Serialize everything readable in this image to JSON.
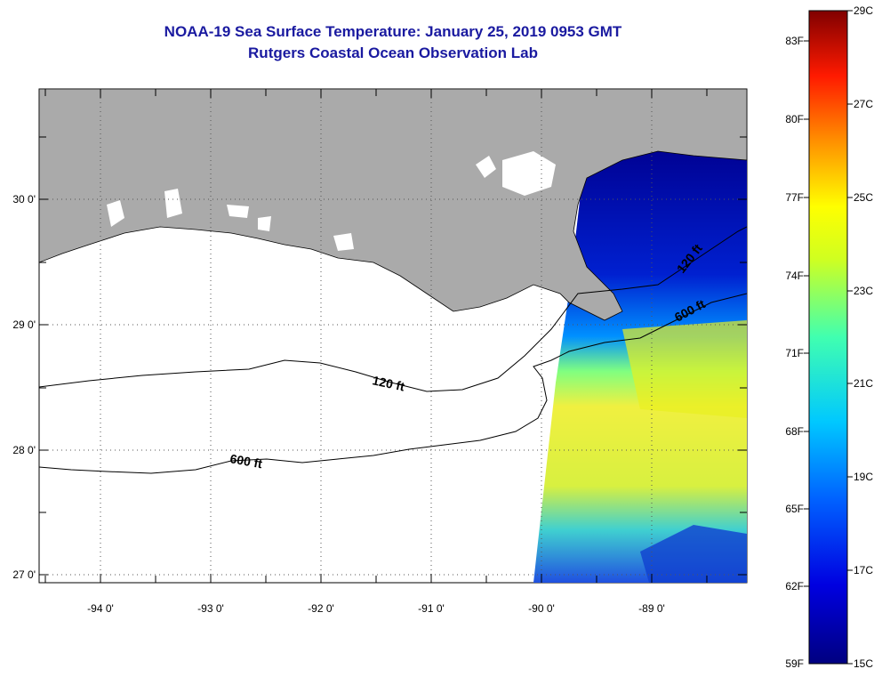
{
  "title": {
    "line1": "NOAA-19 Sea Surface Temperature:  January 25, 2019 0953 GMT",
    "line2": "Rutgers Coastal Ocean Observation Lab"
  },
  "map": {
    "lon_labels": [
      "-94 0'",
      "-93 0'",
      "-92 0'",
      "-91 0'",
      "-90 0'",
      "-89 0'"
    ],
    "lat_labels": [
      "30 0'",
      "29 0'",
      "28 0'",
      "27 0'"
    ],
    "contour_labels": {
      "shelf_120_west": "120 ft",
      "shelf_600_west": "600 ft",
      "shelf_120_east": "120 ft",
      "shelf_600_east": "600 ft"
    },
    "colors": {
      "land": "#aaaaaa",
      "ocean_nodata": "#ffffff",
      "grid": "#555555",
      "contour": "#000000"
    }
  },
  "colorbar": {
    "fahrenheit_labels": [
      "83F",
      "80F",
      "77F",
      "74F",
      "71F",
      "68F",
      "65F",
      "62F",
      "59F"
    ],
    "celsius_labels": [
      "29C",
      "27C",
      "25C",
      "23C",
      "21C",
      "19C",
      "17C",
      "15C"
    ],
    "range_c": [
      15,
      29
    ]
  }
}
